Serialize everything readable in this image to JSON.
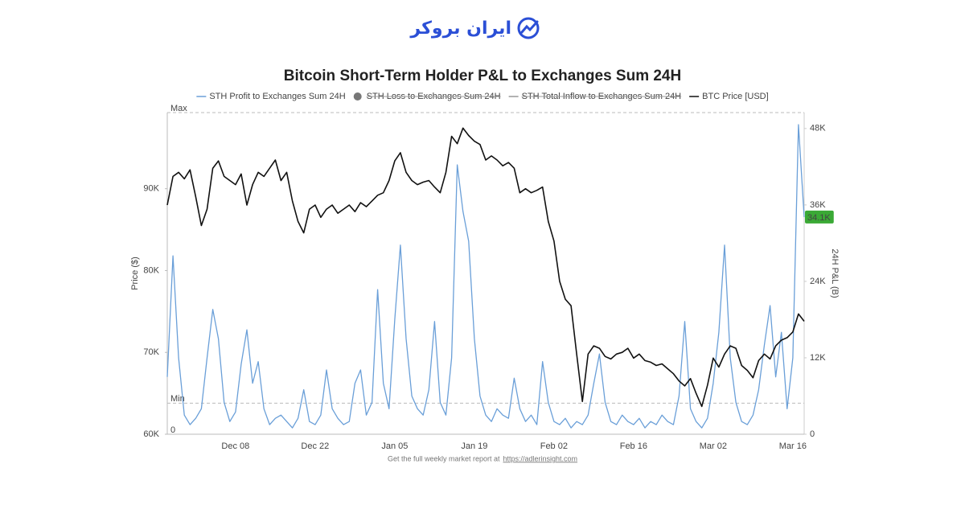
{
  "header": {
    "brand": "ایران بروکر"
  },
  "chart_data": {
    "type": "line",
    "title": "Bitcoin Short-Term Holder P&L to Exchanges Sum 24H",
    "y_label": "Price ($)",
    "y2_label": "24H P&L (B)",
    "x": [
      "Nov 26",
      "Nov 27",
      "Nov 28",
      "Nov 29",
      "Nov 30",
      "Dec 01",
      "Dec 02",
      "Dec 03",
      "Dec 04",
      "Dec 05",
      "Dec 06",
      "Dec 07",
      "Dec 08",
      "Dec 09",
      "Dec 10",
      "Dec 11",
      "Dec 12",
      "Dec 13",
      "Dec 14",
      "Dec 15",
      "Dec 16",
      "Dec 17",
      "Dec 18",
      "Dec 19",
      "Dec 20",
      "Dec 21",
      "Dec 22",
      "Dec 23",
      "Dec 24",
      "Dec 25",
      "Dec 26",
      "Dec 27",
      "Dec 28",
      "Dec 29",
      "Dec 30",
      "Dec 31",
      "Jan 01",
      "Jan 02",
      "Jan 03",
      "Jan 04",
      "Jan 05",
      "Jan 06",
      "Jan 07",
      "Jan 08",
      "Jan 09",
      "Jan 10",
      "Jan 11",
      "Jan 12",
      "Jan 13",
      "Jan 14",
      "Jan 15",
      "Jan 16",
      "Jan 17",
      "Jan 18",
      "Jan 19",
      "Jan 20",
      "Jan 21",
      "Jan 22",
      "Jan 23",
      "Jan 24",
      "Jan 25",
      "Jan 26",
      "Jan 27",
      "Jan 28",
      "Jan 29",
      "Jan 30",
      "Jan 31",
      "Feb 01",
      "Feb 02",
      "Feb 03",
      "Feb 04",
      "Feb 05",
      "Feb 06",
      "Feb 07",
      "Feb 08",
      "Feb 09",
      "Feb 10",
      "Feb 11",
      "Feb 12",
      "Feb 13",
      "Feb 14",
      "Feb 15",
      "Feb 16",
      "Feb 17",
      "Feb 18",
      "Feb 19",
      "Feb 20",
      "Feb 21",
      "Feb 22",
      "Feb 23",
      "Feb 24",
      "Feb 25",
      "Feb 26",
      "Feb 27",
      "Feb 28",
      "Mar 01",
      "Mar 02",
      "Mar 03",
      "Mar 04",
      "Mar 05",
      "Mar 06",
      "Mar 07",
      "Mar 08",
      "Mar 09",
      "Mar 10",
      "Mar 11",
      "Mar 12",
      "Mar 13",
      "Mar 14",
      "Mar 15",
      "Mar 16",
      "Mar 17",
      "Mar 18"
    ],
    "xticks": [
      "Dec 08",
      "Dec 22",
      "Jan 05",
      "Jan 19",
      "Feb 02",
      "Feb 16",
      "Mar 02",
      "Mar 16"
    ],
    "ylim": [
      60000,
      99300
    ],
    "yticks": [
      {
        "value": 60000,
        "label": "60K"
      },
      {
        "value": 70000,
        "label": "70K"
      },
      {
        "value": 80000,
        "label": "80K"
      },
      {
        "value": 90000,
        "label": "90K"
      }
    ],
    "y2lim": [
      0,
      50500
    ],
    "y2ticks": [
      0,
      {
        "value": 12000,
        "label": "12K"
      },
      {
        "value": 24000,
        "label": "24K"
      },
      {
        "value": 36000,
        "label": "36K"
      },
      {
        "value": 48000,
        "label": "48K"
      }
    ],
    "grid": false,
    "legend": "top",
    "series": [
      {
        "name": "STH Profit to Exchanges Sum 24H",
        "color": "#6a9fd8",
        "marker": "line",
        "axis": "y2",
        "values": [
          9000,
          28000,
          12000,
          3000,
          1500,
          2500,
          4000,
          12000,
          19600,
          15000,
          5000,
          2000,
          3500,
          11000,
          16400,
          8000,
          11400,
          4000,
          1500,
          2500,
          3000,
          2000,
          1000,
          2500,
          7000,
          2000,
          1500,
          3000,
          10100,
          4000,
          2500,
          1500,
          2000,
          8000,
          10100,
          3000,
          5000,
          22700,
          8000,
          4000,
          18000,
          29700,
          15000,
          6000,
          4000,
          3000,
          7000,
          17700,
          5000,
          3000,
          12000,
          42300,
          35000,
          30300,
          15000,
          6000,
          3000,
          2000,
          4000,
          3000,
          2500,
          8800,
          4000,
          2000,
          3000,
          1500,
          11400,
          5000,
          2000,
          1500,
          2500,
          1000,
          2000,
          1500,
          3000,
          8000,
          12600,
          5000,
          2000,
          1500,
          3000,
          2000,
          1500,
          2500,
          1000,
          2000,
          1500,
          3000,
          2000,
          1500,
          6000,
          17700,
          4000,
          2000,
          1000,
          2500,
          8000,
          16000,
          29700,
          12000,
          5000,
          2000,
          1500,
          3000,
          7000,
          14000,
          20200,
          9000,
          16000,
          4000,
          12000,
          48600,
          34100
        ]
      },
      {
        "name": "STH Loss to Exchanges Sum 24H",
        "color": "#777777",
        "marker": "circle",
        "hidden": true
      },
      {
        "name": "STH Total Inflow to Exchanges Sum 24H",
        "color": "#999999",
        "marker": "line",
        "hidden": true
      },
      {
        "name": "BTC Price [USD]",
        "color": "#111111",
        "marker": "line",
        "axis": "y",
        "values": [
          88000,
          91500,
          92000,
          91200,
          92300,
          89000,
          85500,
          87500,
          92500,
          93400,
          91500,
          91000,
          90500,
          91800,
          88000,
          90500,
          92000,
          91500,
          92500,
          93500,
          91000,
          92000,
          88500,
          86000,
          84600,
          87500,
          88000,
          86500,
          87500,
          88000,
          87000,
          87500,
          88000,
          87200,
          88300,
          87800,
          88500,
          89200,
          89500,
          91000,
          93400,
          94400,
          92000,
          91000,
          90500,
          90800,
          91000,
          90200,
          89500,
          92000,
          96400,
          95500,
          97400,
          96500,
          95800,
          95400,
          93500,
          94000,
          93500,
          92800,
          93200,
          92500,
          89500,
          90000,
          89500,
          89800,
          90200,
          86000,
          83600,
          78700,
          76500,
          75700,
          69800,
          64000,
          69800,
          70800,
          70500,
          69500,
          69200,
          69800,
          70000,
          70500,
          69300,
          69800,
          69000,
          68800,
          68400,
          68600,
          68000,
          67400,
          66500,
          65900,
          66800,
          65000,
          63400,
          66000,
          69300,
          68200,
          69800,
          70800,
          70500,
          68400,
          67800,
          66900,
          69000,
          69800,
          69200,
          70800,
          71500,
          71800,
          72500,
          74700,
          73800
        ]
      }
    ],
    "annotations": [
      {
        "text": "Max",
        "value": 99300,
        "axis": "y",
        "style": "dashed"
      },
      {
        "text": "Min",
        "value": 63800,
        "axis": "y",
        "style": "dashed"
      },
      {
        "text": "0",
        "value": 0,
        "axis": "y2",
        "style": "plain"
      },
      {
        "text": "34.1K",
        "value": 34100,
        "axis": "y2",
        "style": "badge",
        "color": "#3aa935"
      }
    ]
  },
  "footer": {
    "text": "Get the full weekly market report at",
    "link": "https://adlerinsight.com"
  }
}
